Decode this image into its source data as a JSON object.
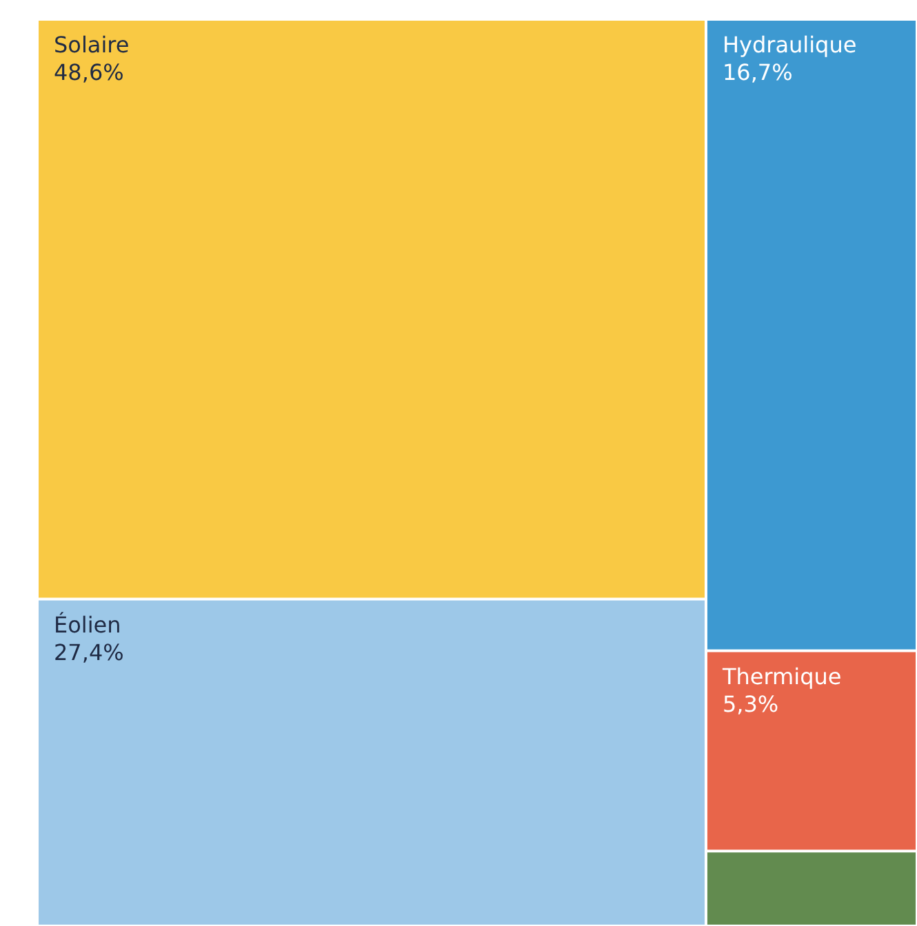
{
  "chart_data": {
    "type": "other",
    "categories": [
      "Solaire",
      "Éolien",
      "Hydraulique",
      "Thermique",
      null
    ],
    "values": [
      48.6,
      27.4,
      16.7,
      5.3,
      null
    ],
    "value_labels": [
      "48,6%",
      "27,4%",
      "16,7%",
      "5,3%",
      null
    ],
    "colors": [
      "#f9c944",
      "#9dc8e8",
      "#3d99d1",
      "#e8654a",
      "#628b4f"
    ]
  }
}
